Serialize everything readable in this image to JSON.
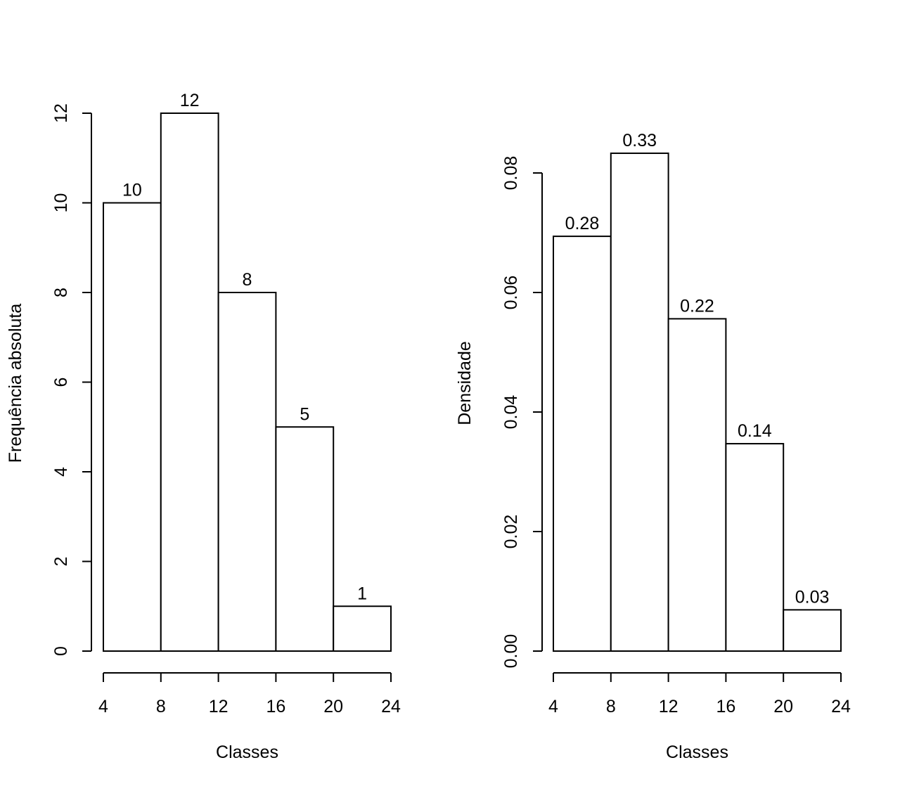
{
  "chart_data": [
    {
      "type": "bar",
      "title": "",
      "xlabel": "Classes",
      "ylabel": "Frequência absoluta",
      "bin_edges": [
        4,
        8,
        12,
        16,
        20,
        24
      ],
      "values": [
        10,
        12,
        8,
        5,
        1
      ],
      "bar_labels": [
        "10",
        "12",
        "8",
        "5",
        "1"
      ],
      "x_ticks": [
        "4",
        "8",
        "12",
        "16",
        "20",
        "24"
      ],
      "y_ticks": [
        "0",
        "2",
        "4",
        "6",
        "8",
        "10",
        "12"
      ],
      "ylim": [
        0,
        12
      ],
      "grid": false
    },
    {
      "type": "bar",
      "title": "",
      "xlabel": "Classes",
      "ylabel": "Densidade",
      "bin_edges": [
        4,
        8,
        12,
        16,
        20,
        24
      ],
      "values": [
        0.0694,
        0.0833,
        0.0556,
        0.0347,
        0.0069
      ],
      "bar_labels": [
        "0.28",
        "0.33",
        "0.22",
        "0.14",
        "0.03"
      ],
      "x_ticks": [
        "4",
        "8",
        "12",
        "16",
        "20",
        "24"
      ],
      "y_ticks": [
        "0.00",
        "0.02",
        "0.04",
        "0.06",
        "0.08"
      ],
      "ylim": [
        0,
        0.08
      ],
      "grid": false
    }
  ]
}
